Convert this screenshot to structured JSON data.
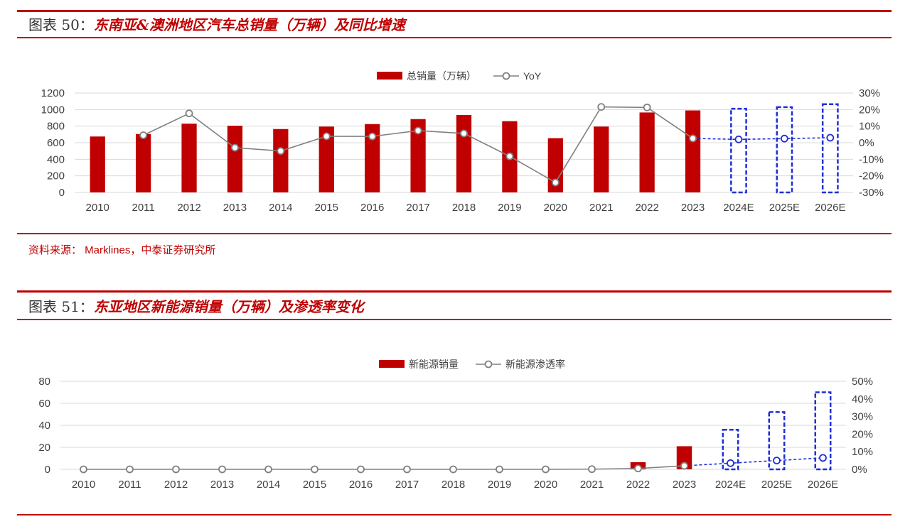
{
  "figure1": {
    "number": "图表 50：",
    "title": "东南亚&澳洲地区汽车总销量（万辆）及同比增速",
    "source_label": "资料来源：",
    "source_text": " Marklines，中泰证券研究所"
  },
  "figure2": {
    "number": "图表 51：",
    "title": "东亚地区新能源销量（万辆）及渗透率变化"
  },
  "chart_data": [
    {
      "type": "bar+line",
      "categories": [
        "2010",
        "2011",
        "2012",
        "2013",
        "2014",
        "2015",
        "2016",
        "2017",
        "2018",
        "2019",
        "2020",
        "2021",
        "2022",
        "2023",
        "2024E",
        "2025E",
        "2026E"
      ],
      "series": [
        {
          "name": "总销量（万辆）",
          "axis": "left",
          "kind": "bar",
          "values": [
            675,
            705,
            830,
            805,
            765,
            795,
            825,
            885,
            935,
            860,
            655,
            795,
            965,
            990,
            1010,
            1030,
            1065
          ]
        },
        {
          "name": "YoY",
          "axis": "right",
          "kind": "line",
          "unit": "%",
          "values": [
            null,
            4.5,
            17.7,
            -3.0,
            -5.0,
            3.9,
            3.8,
            7.3,
            5.6,
            -8.2,
            -24.0,
            21.6,
            21.3,
            2.6,
            2.0,
            2.5,
            3.0
          ]
        }
      ],
      "estimate_categories": [
        "2024E",
        "2025E",
        "2026E"
      ],
      "y_left": {
        "ylim": [
          0,
          1200
        ],
        "ticks": [
          "0",
          "200",
          "400",
          "600",
          "800",
          "1000",
          "1200"
        ]
      },
      "y_right": {
        "ylim": [
          -30,
          30
        ],
        "ticks": [
          "-30%",
          "-20%",
          "-10%",
          "0%",
          "10%",
          "20%",
          "30%"
        ]
      },
      "legend_position": "top-center",
      "grid": true,
      "colors": {
        "bar": "#c00000",
        "line": "#808080",
        "estimate": "#1f2fd6",
        "grid": "#d9d9d9"
      }
    },
    {
      "type": "bar+line",
      "categories": [
        "2010",
        "2011",
        "2012",
        "2013",
        "2014",
        "2015",
        "2016",
        "2017",
        "2018",
        "2019",
        "2020",
        "2021",
        "2022",
        "2023",
        "2024E",
        "2025E",
        "2026E"
      ],
      "series": [
        {
          "name": "新能源销量",
          "axis": "left",
          "kind": "bar",
          "values": [
            0,
            0,
            0,
            0,
            0,
            0,
            0,
            0,
            0,
            0,
            0.1,
            0.4,
            6.5,
            21,
            36,
            52,
            70
          ]
        },
        {
          "name": "新能源渗透率",
          "axis": "right",
          "kind": "line",
          "unit": "%",
          "values": [
            0,
            0,
            0,
            0,
            0,
            0,
            0,
            0,
            0,
            0,
            0,
            0.1,
            0.5,
            2.0,
            3.5,
            5.0,
            6.5
          ]
        }
      ],
      "estimate_categories": [
        "2024E",
        "2025E",
        "2026E"
      ],
      "y_left": {
        "ylim": [
          0,
          80
        ],
        "ticks": [
          "0",
          "20",
          "40",
          "60",
          "80"
        ]
      },
      "y_right": {
        "ylim": [
          0,
          50
        ],
        "ticks": [
          "0%",
          "10%",
          "20%",
          "30%",
          "40%",
          "50%"
        ]
      },
      "legend_position": "top-center",
      "grid": true,
      "colors": {
        "bar": "#c00000",
        "line": "#808080",
        "estimate": "#1f2fd6",
        "grid": "#d9d9d9"
      }
    }
  ]
}
